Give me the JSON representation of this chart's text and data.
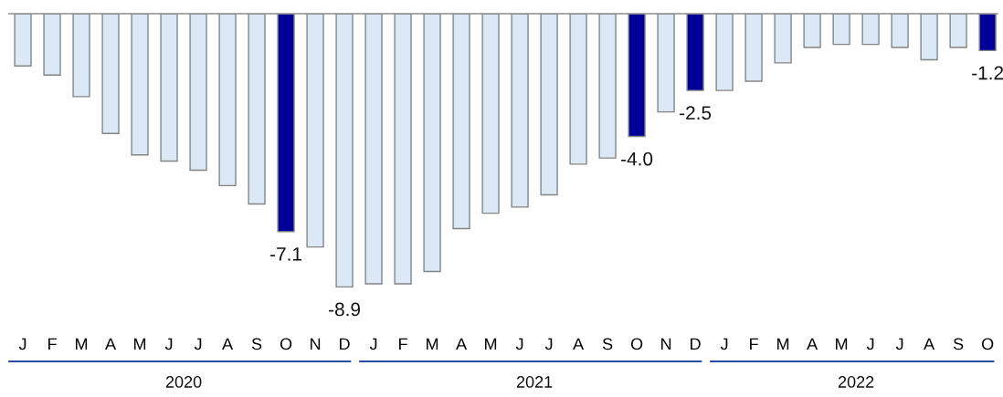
{
  "chart_data": {
    "type": "bar",
    "categories": [
      "J",
      "F",
      "M",
      "A",
      "M",
      "J",
      "J",
      "A",
      "S",
      "O",
      "N",
      "D",
      "J",
      "F",
      "M",
      "A",
      "M",
      "J",
      "J",
      "A",
      "S",
      "O",
      "N",
      "D",
      "J",
      "F",
      "M",
      "A",
      "M",
      "J",
      "J",
      "A",
      "S",
      "O"
    ],
    "values": [
      -1.7,
      -2.0,
      -2.7,
      -3.9,
      -4.6,
      -4.8,
      -5.1,
      -5.6,
      -6.2,
      -7.1,
      -7.6,
      -8.9,
      -8.8,
      -8.8,
      -8.4,
      -7.0,
      -6.5,
      -6.3,
      -5.9,
      -4.9,
      -4.7,
      -4.0,
      -3.2,
      -2.5,
      -2.5,
      -2.2,
      -1.6,
      -1.1,
      -1.0,
      -1.0,
      -1.1,
      -1.5,
      -1.1,
      -1.2
    ],
    "colors": [
      "#dce8f5",
      "#dce8f5",
      "#dce8f5",
      "#dce8f5",
      "#dce8f5",
      "#dce8f5",
      "#dce8f5",
      "#dce8f5",
      "#dce8f5",
      "#000099",
      "#dce8f5",
      "#dce8f5",
      "#dce8f5",
      "#dce8f5",
      "#dce8f5",
      "#dce8f5",
      "#dce8f5",
      "#dce8f5",
      "#dce8f5",
      "#dce8f5",
      "#dce8f5",
      "#000099",
      "#dce8f5",
      "#000099",
      "#dce8f5",
      "#dce8f5",
      "#dce8f5",
      "#dce8f5",
      "#dce8f5",
      "#dce8f5",
      "#dce8f5",
      "#dce8f5",
      "#dce8f5",
      "#000099"
    ],
    "value_labels": [
      null,
      null,
      null,
      null,
      null,
      null,
      null,
      null,
      null,
      "-7.1",
      null,
      "-8.9",
      null,
      null,
      null,
      null,
      null,
      null,
      null,
      null,
      null,
      "-4.0",
      null,
      "-2.5",
      null,
      null,
      null,
      null,
      null,
      null,
      null,
      null,
      null,
      "-1.2"
    ],
    "annotations": [
      "2020",
      "2021",
      "2022"
    ],
    "tick_labels": "x",
    "grid": false,
    "legend": false
  }
}
